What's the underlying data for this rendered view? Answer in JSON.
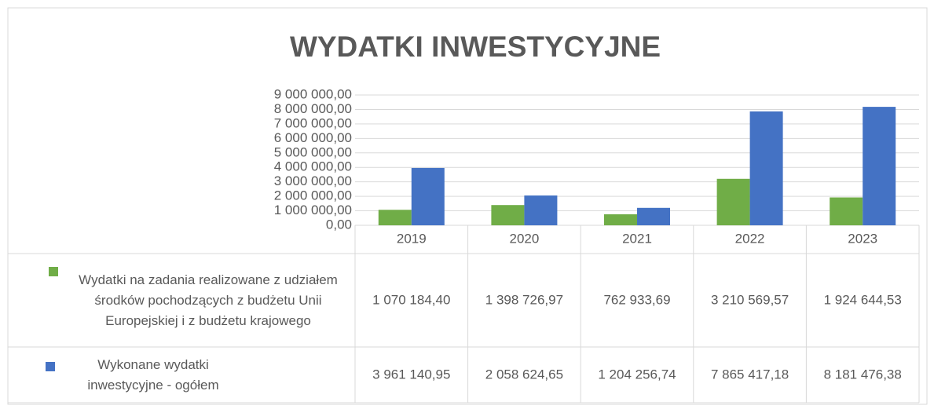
{
  "chart_data": {
    "type": "bar",
    "title": "WYDATKI INWESTYCYJNE",
    "categories": [
      "2019",
      "2020",
      "2021",
      "2022",
      "2023"
    ],
    "series": [
      {
        "name": "Wydatki na zadania realizowane z udziałem środków pochodzących z budżetu Unii Europejskiej i z budżetu krajowego",
        "color": "#70ad47",
        "values": [
          1070184.4,
          1398726.97,
          762933.69,
          3210569.57,
          1924644.53
        ],
        "value_labels": [
          "1 070 184,40",
          "1 398 726,97",
          "762 933,69",
          "3 210 569,57",
          "1 924 644,53"
        ]
      },
      {
        "name": "Wykonane wydatki inwestycyjne - ogółem",
        "color": "#4472c4",
        "values": [
          3961140.95,
          2058624.65,
          1204256.74,
          7865417.18,
          8181476.38
        ],
        "value_labels": [
          "3 961 140,95",
          "2 058 624,65",
          "1 204 256,74",
          "7 865 417,18",
          "8 181 476,38"
        ]
      }
    ],
    "ylim": [
      0,
      9000000
    ],
    "yticks": [
      {
        "value": 0,
        "label": "0,00"
      },
      {
        "value": 1000000,
        "label": "1 000 000,00"
      },
      {
        "value": 2000000,
        "label": "2 000 000,00"
      },
      {
        "value": 3000000,
        "label": "3 000 000,00"
      },
      {
        "value": 4000000,
        "label": "4 000 000,00"
      },
      {
        "value": 5000000,
        "label": "5 000 000,00"
      },
      {
        "value": 6000000,
        "label": "6 000 000,00"
      },
      {
        "value": 7000000,
        "label": "7 000 000,00"
      },
      {
        "value": 8000000,
        "label": "8 000 000,00"
      },
      {
        "value": 9000000,
        "label": "9 000 000,00"
      }
    ],
    "grid": true
  }
}
